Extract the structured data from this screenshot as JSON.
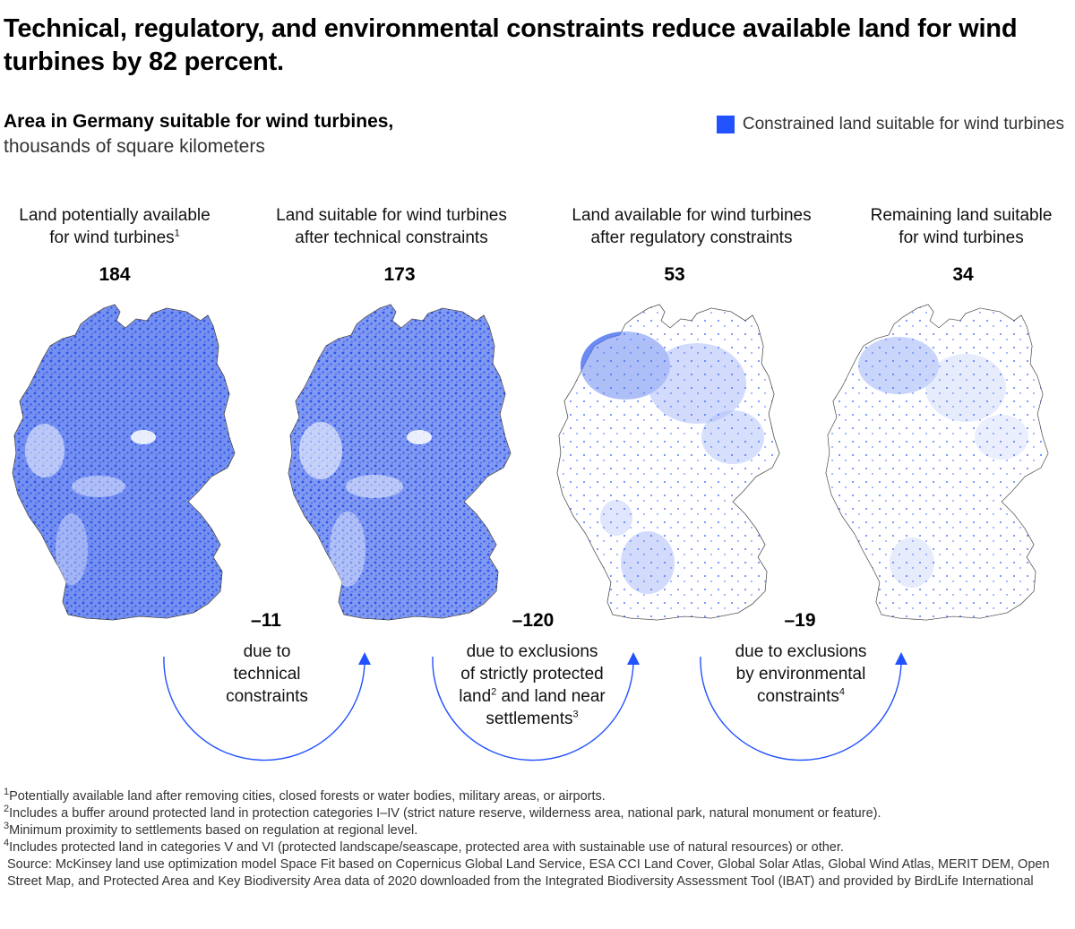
{
  "title": "Technical, regulatory, and environmental constraints reduce available land for wind turbines by 82 percent.",
  "subtitle": {
    "line1": "Area in Germany suitable for wind turbines,",
    "line2": "thousands of square kilometers"
  },
  "legend": {
    "label": "Constrained land suitable for wind turbines",
    "color": "#2251ff"
  },
  "chart_data": {
    "type": "bar",
    "title": "Area in Germany suitable for wind turbines, thousands of square kilometers",
    "unit": "thousands of square kilometers",
    "categories": [
      "Land potentially available for wind turbines",
      "Land suitable for wind turbines after technical constraints",
      "Land available for wind turbines after regulatory constraints",
      "Remaining land suitable for wind turbines"
    ],
    "values": [
      184,
      173,
      53,
      34
    ],
    "deltas": [
      -11,
      -120,
      -19
    ],
    "legend": "top-right"
  },
  "panels": [
    {
      "label_a": "Land potentially available",
      "label_b": "for wind turbines",
      "sup": "1",
      "value": "184"
    },
    {
      "label_a": "Land suitable for wind turbines",
      "label_b": "after technical constraints",
      "sup": "",
      "value": "173"
    },
    {
      "label_a": "Land available for wind turbines",
      "label_b": "after regulatory constraints",
      "sup": "",
      "value": "53"
    },
    {
      "label_a": "Remaining land suitable",
      "label_b": "for wind turbines",
      "sup": "",
      "value": "34"
    }
  ],
  "deltas": [
    {
      "value": "–11",
      "l1": "due to",
      "l2": "technical",
      "l3": "constraints"
    },
    {
      "value": "–120",
      "l1": "due to exclusions",
      "l2": "of strictly protected",
      "l3a": "land",
      "sup2": "2",
      "l3b": " and land near",
      "l4": "settlements",
      "sup3": "3"
    },
    {
      "value": "–19",
      "l1": "due to exclusions",
      "l2": "by environmental",
      "l3": "constraints",
      "sup": "4"
    }
  ],
  "footnotes": {
    "f1_mark": "1",
    "f1": "Potentially available land after removing cities, closed forests or water bodies, military areas, or airports.",
    "f2_mark": "2",
    "f2": "Includes a buffer around protected land in protection categories I–IV (strict nature reserve, wilderness area, national park, natural monument or feature).",
    "f3_mark": "3",
    "f3": "Minimum proximity to settlements based on regulation at regional level.",
    "f4_mark": "4",
    "f4": "Includes protected land in categories V and VI (protected landscape/seascape, protected area with sustainable use of natural resources) or other.",
    "source": "Source: McKinsey land use optimization model Space Fit based on Copernicus Global Land Service, ESA CCI Land Cover, Global Solar Atlas, Global Wind Atlas, MERIT DEM, Open Street Map, and Protected Area and Key Biodiversity Area data of 2020 downloaded from the Integrated Biodiversity Assessment Tool (IBAT) and provided by BirdLife International"
  },
  "colors": {
    "accent": "#2251ff",
    "text": "#000000",
    "muted": "#333333"
  }
}
